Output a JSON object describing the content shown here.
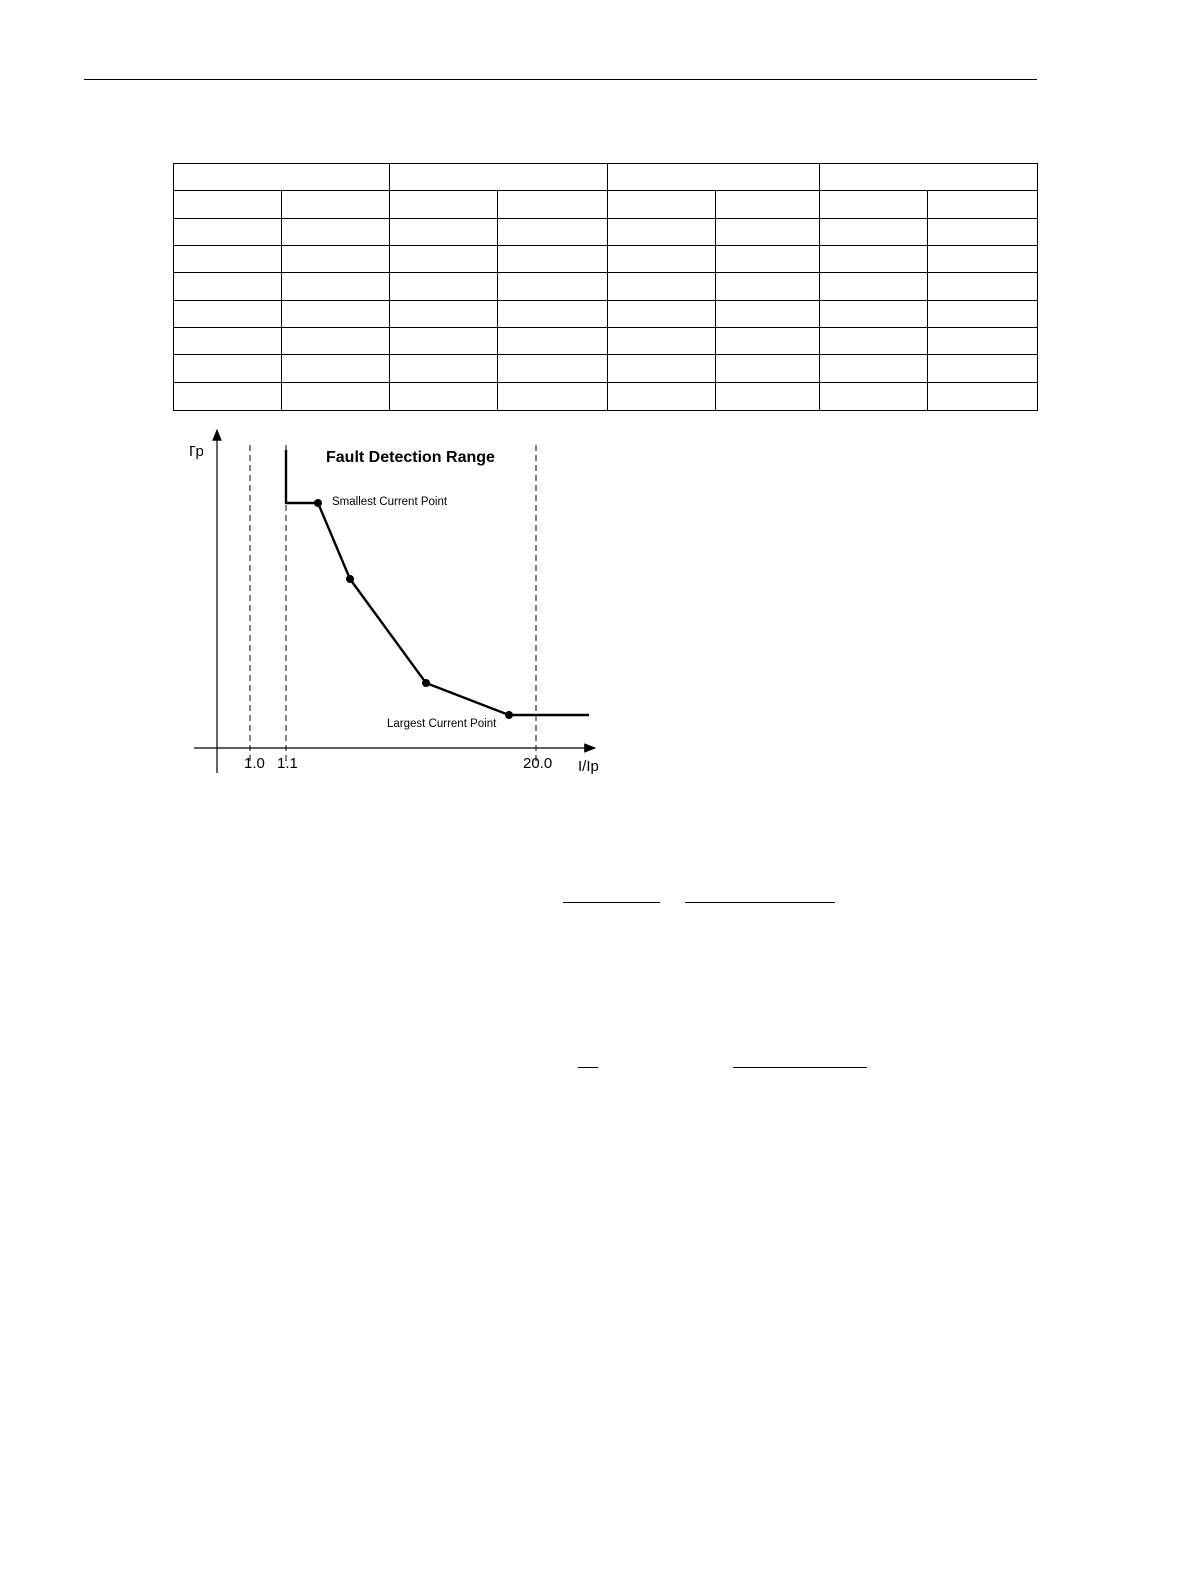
{
  "table": {
    "rows": 9,
    "cols": 8
  },
  "chart_data": {
    "type": "line",
    "title": "Fault Detection Range",
    "xlabel": "I/Ip",
    "ylabel": "T/Tp",
    "x_ticks": [
      "1.0",
      "1.1",
      "20.0"
    ],
    "annotations": {
      "smallest": "Smallest Current Point",
      "largest": "Largest Current Point"
    },
    "grid": false,
    "legend": "none"
  }
}
